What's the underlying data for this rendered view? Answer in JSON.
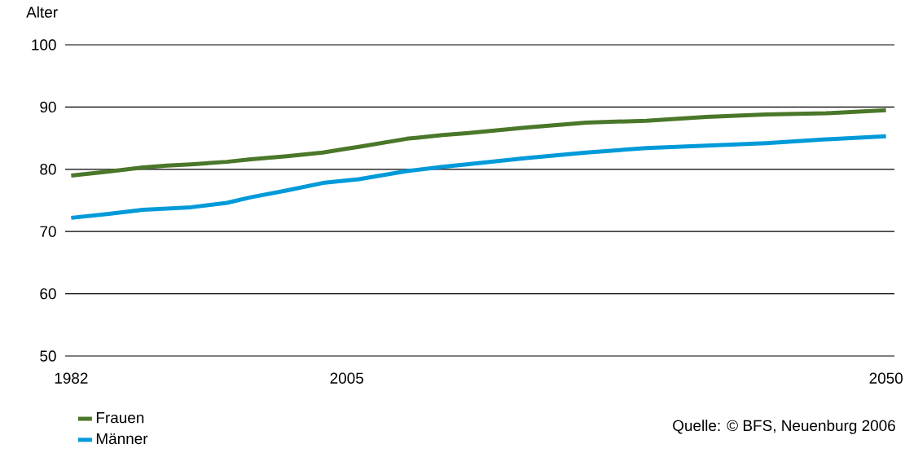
{
  "chart_data": {
    "type": "line",
    "ylabel": "Alter",
    "x": [
      1982,
      1985,
      1988,
      1990,
      1992,
      1995,
      1997,
      2000,
      2003,
      2005,
      2006,
      2010,
      2013,
      2015,
      2020,
      2025,
      2030,
      2035,
      2040,
      2045,
      2050
    ],
    "series": [
      {
        "name": "Frauen",
        "color": "#4a7729",
        "values": [
          79.0,
          79.6,
          80.3,
          80.6,
          80.8,
          81.2,
          81.6,
          82.1,
          82.7,
          83.3,
          83.6,
          84.9,
          85.5,
          85.8,
          86.7,
          87.5,
          87.8,
          88.4,
          88.8,
          89.0,
          89.5
        ]
      },
      {
        "name": "Männer",
        "color": "#009ad9",
        "values": [
          72.2,
          72.8,
          73.5,
          73.7,
          73.9,
          74.6,
          75.5,
          76.6,
          77.8,
          78.2,
          78.4,
          79.7,
          80.4,
          80.8,
          81.8,
          82.7,
          83.4,
          83.8,
          84.2,
          84.8,
          85.3
        ]
      }
    ],
    "xlim": [
      1981.5,
      2050.7
    ],
    "xticks": [
      1982,
      2005,
      2050
    ],
    "ylim": [
      50,
      100
    ],
    "yticks": [
      50,
      60,
      70,
      80,
      90,
      100
    ],
    "grid": "y",
    "legend": "bottom left",
    "marker": "none",
    "line_style": "solid",
    "annotations": [
      "Quelle: © BFS, Neuenburg 2006"
    ]
  }
}
